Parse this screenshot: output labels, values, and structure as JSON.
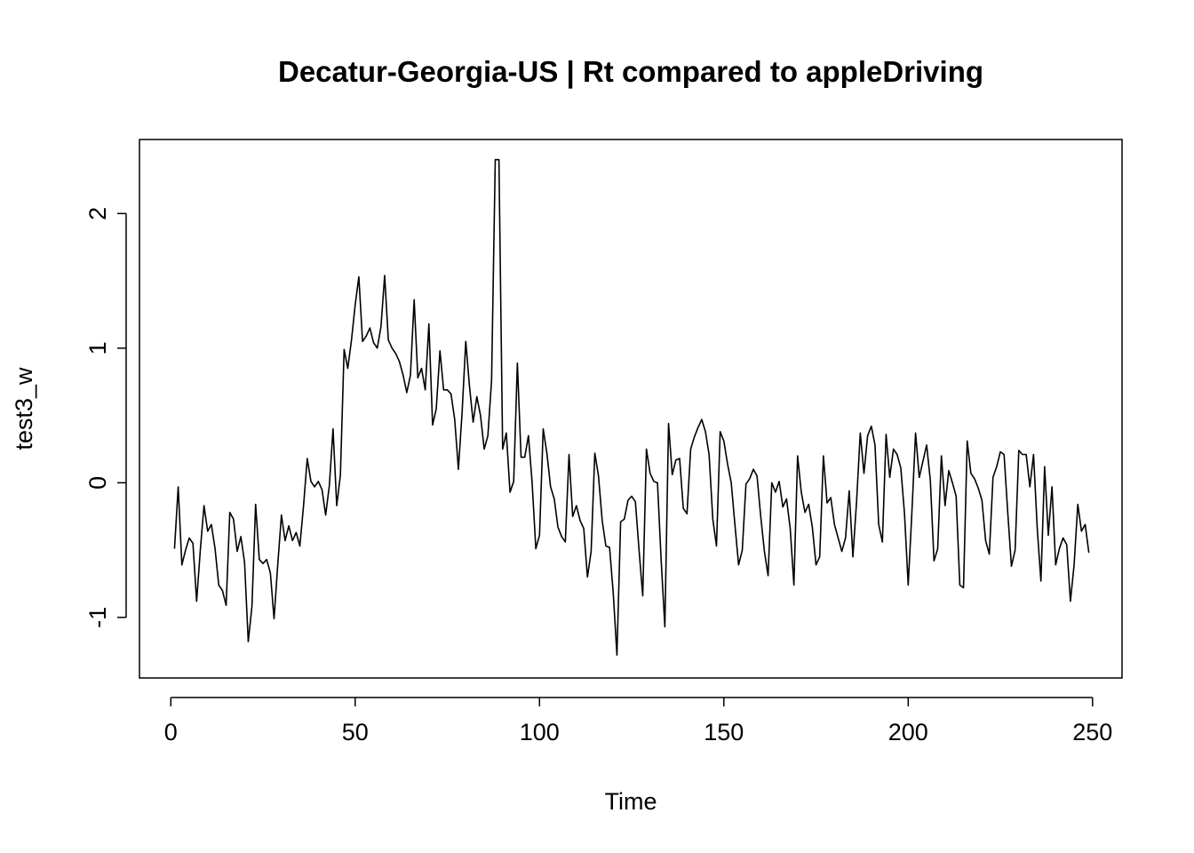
{
  "chart_data": {
    "type": "line",
    "title": "Decatur-Georgia-US | Rt compared to appleDriving",
    "xlabel": "Time",
    "ylabel": "test3_w",
    "xlim": [
      -8.5,
      258
    ],
    "ylim": [
      -1.45,
      2.55
    ],
    "x_ticks": [
      0,
      50,
      100,
      150,
      200,
      250
    ],
    "x_tick_labels": [
      "0",
      "50",
      "100",
      "150",
      "200",
      "250"
    ],
    "y_ticks": [
      -1,
      0,
      1,
      2
    ],
    "y_tick_labels": [
      "-1",
      "0",
      "1",
      "2"
    ],
    "grid": false,
    "legend": "none",
    "line_color": "#000000",
    "series": [
      {
        "x_start": 1,
        "values": [
          -0.49,
          -0.03,
          -0.61,
          -0.5,
          -0.41,
          -0.45,
          -0.88,
          -0.5,
          -0.17,
          -0.36,
          -0.31,
          -0.49,
          -0.76,
          -0.8,
          -0.91,
          -0.22,
          -0.27,
          -0.51,
          -0.4,
          -0.59,
          -1.18,
          -0.92,
          -0.16,
          -0.57,
          -0.6,
          -0.57,
          -0.67,
          -1.01,
          -0.61,
          -0.24,
          -0.43,
          -0.32,
          -0.43,
          -0.37,
          -0.47,
          -0.17,
          0.18,
          0.01,
          -0.03,
          0.01,
          -0.05,
          -0.24,
          -0.02,
          0.4,
          -0.17,
          0.06,
          0.99,
          0.85,
          1.06,
          1.32,
          1.53,
          1.05,
          1.09,
          1.15,
          1.04,
          1.0,
          1.16,
          1.54,
          1.06,
          1.0,
          0.96,
          0.9,
          0.8,
          0.67,
          0.8,
          1.36,
          0.78,
          0.85,
          0.69,
          1.18,
          0.43,
          0.55,
          0.98,
          0.69,
          0.69,
          0.66,
          0.47,
          0.1,
          0.52,
          1.05,
          0.72,
          0.45,
          0.64,
          0.5,
          0.25,
          0.35,
          0.76,
          2.4,
          2.4,
          0.25,
          0.37,
          -0.07,
          0.01,
          0.89,
          0.19,
          0.19,
          0.35,
          0.0,
          -0.49,
          -0.39,
          0.4,
          0.22,
          -0.03,
          -0.12,
          -0.33,
          -0.4,
          -0.44,
          0.21,
          -0.25,
          -0.17,
          -0.28,
          -0.34,
          -0.7,
          -0.51,
          0.22,
          0.05,
          -0.28,
          -0.47,
          -0.48,
          -0.82,
          -1.28,
          -0.29,
          -0.27,
          -0.13,
          -0.1,
          -0.14,
          -0.5,
          -0.84,
          0.25,
          0.07,
          0.01,
          0.0,
          -0.58,
          -1.07,
          0.44,
          0.06,
          0.17,
          0.18,
          -0.19,
          -0.23,
          0.25,
          0.34,
          0.41,
          0.47,
          0.38,
          0.21,
          -0.27,
          -0.47,
          0.38,
          0.31,
          0.14,
          0.0,
          -0.31,
          -0.61,
          -0.5,
          -0.01,
          0.03,
          0.1,
          0.05,
          -0.25,
          -0.51,
          -0.69,
          0.0,
          -0.07,
          0.01,
          -0.18,
          -0.12,
          -0.34,
          -0.76,
          0.2,
          -0.07,
          -0.22,
          -0.16,
          -0.33,
          -0.61,
          -0.55,
          0.2,
          -0.15,
          -0.11,
          -0.31,
          -0.41,
          -0.51,
          -0.41,
          -0.06,
          -0.55,
          -0.14,
          0.37,
          0.07,
          0.35,
          0.42,
          0.28,
          -0.31,
          -0.44,
          0.36,
          0.04,
          0.25,
          0.21,
          0.11,
          -0.23,
          -0.76,
          -0.22,
          0.37,
          0.04,
          0.16,
          0.28,
          0.02,
          -0.58,
          -0.49,
          0.2,
          -0.17,
          0.09,
          0.0,
          -0.1,
          -0.76,
          -0.78,
          0.31,
          0.07,
          0.03,
          -0.04,
          -0.13,
          -0.43,
          -0.53,
          0.04,
          0.12,
          0.23,
          0.21,
          -0.22,
          -0.62,
          -0.5,
          0.24,
          0.21,
          0.21,
          -0.03,
          0.21,
          -0.34,
          -0.73,
          0.12,
          -0.39,
          -0.03,
          -0.61,
          -0.49,
          -0.41,
          -0.46,
          -0.88,
          -0.61,
          -0.16,
          -0.36,
          -0.31,
          -0.52
        ]
      }
    ]
  }
}
